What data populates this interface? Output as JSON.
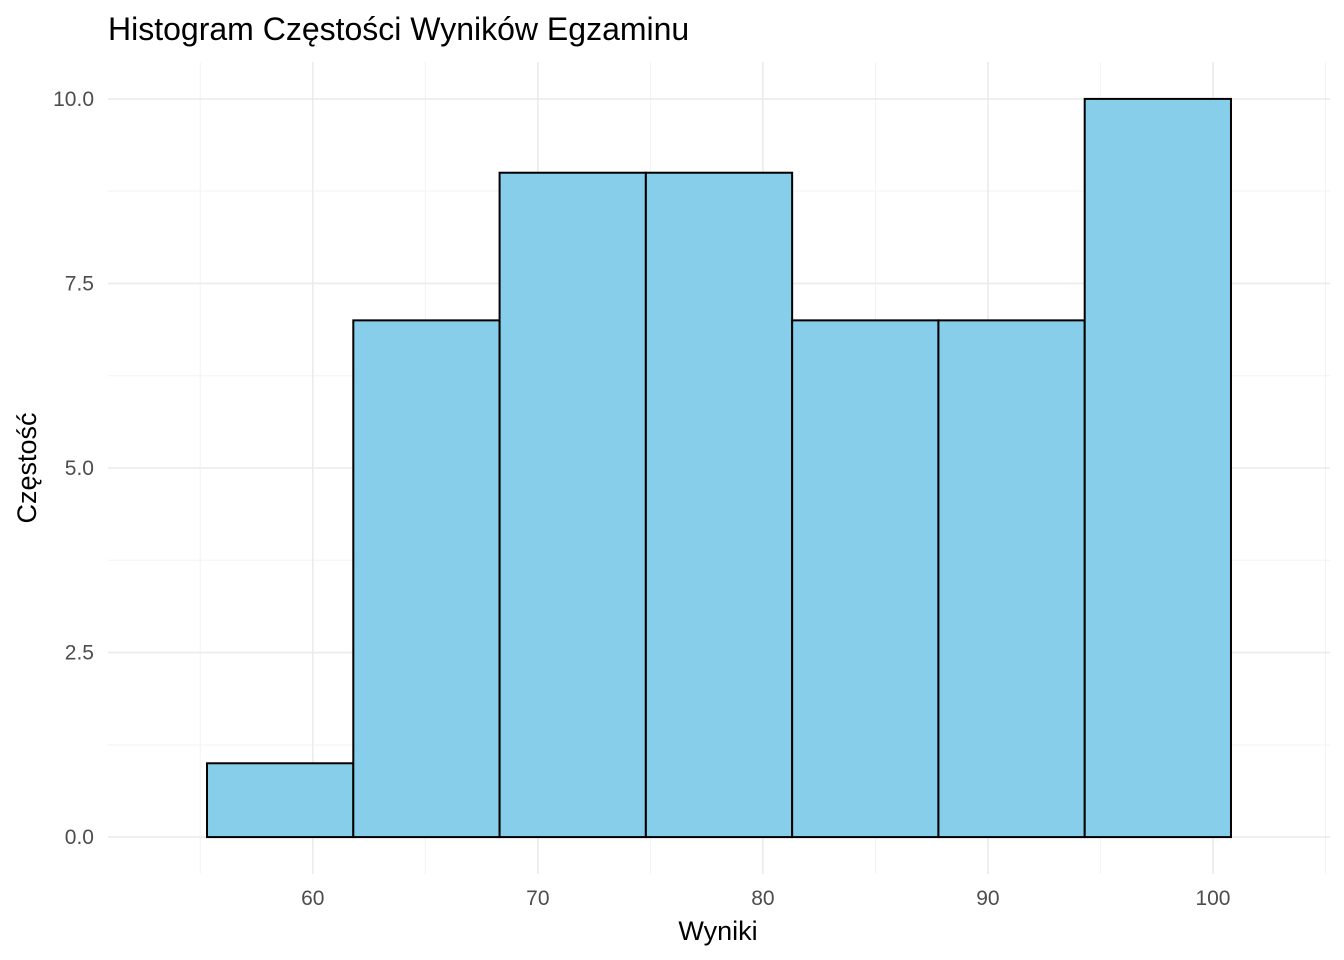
{
  "chart_data": {
    "type": "bar",
    "title": "Histogram Częstości Wyników Egzaminu",
    "xlabel": "Wyniki",
    "ylabel": "Częstość",
    "bins": [
      {
        "x0": 55.3,
        "x1": 61.8,
        "count": 1
      },
      {
        "x0": 61.8,
        "x1": 68.3,
        "count": 7
      },
      {
        "x0": 68.3,
        "x1": 74.8,
        "count": 9
      },
      {
        "x0": 74.8,
        "x1": 81.3,
        "count": 9
      },
      {
        "x0": 81.3,
        "x1": 87.8,
        "count": 7
      },
      {
        "x0": 87.8,
        "x1": 94.3,
        "count": 7
      },
      {
        "x0": 94.3,
        "x1": 100.8,
        "count": 10
      }
    ],
    "xlim": [
      50.9,
      105.2
    ],
    "ylim": [
      -0.5,
      10.5
    ],
    "x_ticks": [
      60,
      70,
      80,
      90,
      100
    ],
    "x_tick_labels": [
      "60",
      "70",
      "80",
      "90",
      "100"
    ],
    "y_ticks": [
      0,
      2.5,
      5,
      7.5,
      10
    ],
    "y_tick_labels": [
      "0.0",
      "2.5",
      "5.0",
      "7.5",
      "10.0"
    ],
    "grid": true,
    "bar_fill": "#87ceeb",
    "bar_stroke": "#000000"
  }
}
